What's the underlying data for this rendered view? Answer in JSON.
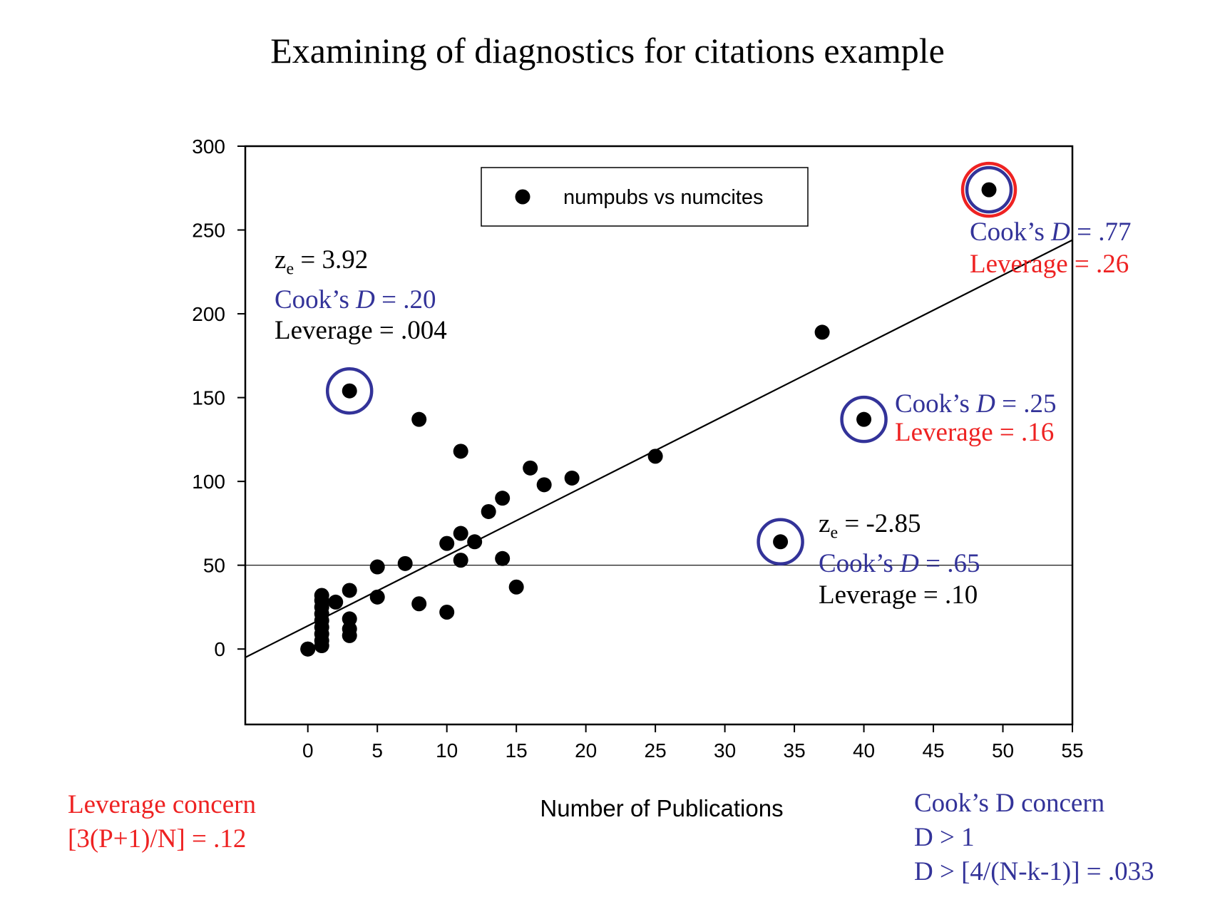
{
  "page": {
    "title": "Examining of diagnostics for citations example",
    "colors": {
      "red": "#ee2222",
      "blue": "#333399",
      "black": "#000000"
    },
    "leverage_note": {
      "line1": "Leverage concern",
      "line2": "[3(P+1)/N] = .12"
    },
    "cooks_note": {
      "line1": "Cook’s D concern",
      "line2": "D > 1",
      "line3": "D > [4/(N-k-1)] = .033"
    }
  },
  "chart_data": {
    "type": "scatter",
    "xlabel": "Number of Publications",
    "ylabel": "",
    "xlim": [
      -4.5,
      55
    ],
    "ylim": [
      -45,
      300
    ],
    "xticks": [
      0,
      5,
      10,
      15,
      20,
      25,
      30,
      35,
      40,
      45,
      50,
      55
    ],
    "yticks": [
      0,
      50,
      100,
      150,
      200,
      250,
      300
    ],
    "legend": {
      "label": "numpubs vs numcites",
      "placement": "top-center"
    },
    "grid": false,
    "reference_line_y": 50,
    "regression_line": {
      "x": [
        -4.5,
        55
      ],
      "y": [
        -5,
        244
      ]
    },
    "series": [
      {
        "name": "numpubs vs numcites",
        "points": [
          [
            0,
            0
          ],
          [
            0,
            0
          ],
          [
            1,
            2
          ],
          [
            1,
            5
          ],
          [
            1,
            9
          ],
          [
            1,
            13
          ],
          [
            1,
            17
          ],
          [
            1,
            21
          ],
          [
            1,
            25
          ],
          [
            1,
            29
          ],
          [
            1,
            32
          ],
          [
            2,
            28
          ],
          [
            3,
            8
          ],
          [
            3,
            12
          ],
          [
            3,
            18
          ],
          [
            3,
            35
          ],
          [
            3,
            154
          ],
          [
            5,
            31
          ],
          [
            5,
            49
          ],
          [
            7,
            51
          ],
          [
            8,
            27
          ],
          [
            8,
            137
          ],
          [
            10,
            22
          ],
          [
            10,
            63
          ],
          [
            11,
            53
          ],
          [
            11,
            69
          ],
          [
            11,
            118
          ],
          [
            12,
            64
          ],
          [
            13,
            82
          ],
          [
            14,
            54
          ],
          [
            14,
            90
          ],
          [
            15,
            37
          ],
          [
            16,
            108
          ],
          [
            17,
            98
          ],
          [
            19,
            102
          ],
          [
            25,
            115
          ],
          [
            34,
            64
          ],
          [
            37,
            189
          ],
          [
            40,
            137
          ],
          [
            49,
            274
          ]
        ]
      }
    ],
    "highlighted_points": [
      {
        "x": 3,
        "y": 154,
        "rings": [
          "blue"
        ]
      },
      {
        "x": 34,
        "y": 64,
        "rings": [
          "blue"
        ]
      },
      {
        "x": 40,
        "y": 137,
        "rings": [
          "blue"
        ]
      },
      {
        "x": 49,
        "y": 274,
        "rings": [
          "red",
          "blue"
        ]
      }
    ],
    "annotations": [
      {
        "id": "a1",
        "lines": [
          {
            "prefix": "z",
            "sub": "e",
            "text": " = 3.92",
            "color": "black"
          },
          {
            "prefix": "Cook’s ",
            "italic": "D",
            "text": " = .20",
            "color": "blue"
          },
          {
            "text": "Leverage = .004",
            "color": "black"
          }
        ]
      },
      {
        "id": "a2",
        "lines": [
          {
            "prefix": "Cook’s ",
            "italic": "D",
            "text": " = .77",
            "color": "blue"
          },
          {
            "text": "Leverage = .26",
            "color": "red"
          }
        ]
      },
      {
        "id": "a3",
        "lines": [
          {
            "prefix": "Cook’s ",
            "italic": "D",
            "text": " = .25",
            "color": "blue"
          },
          {
            "text": "Leverage = .16",
            "color": "red"
          }
        ]
      },
      {
        "id": "a4",
        "lines": [
          {
            "prefix": "z",
            "sub": "e",
            "text": " = -2.85",
            "color": "black"
          },
          {
            "prefix": "Cook’s ",
            "italic": "D",
            "text": " = .65",
            "color": "blue"
          },
          {
            "text": "Leverage = .10",
            "color": "black"
          }
        ]
      }
    ]
  }
}
